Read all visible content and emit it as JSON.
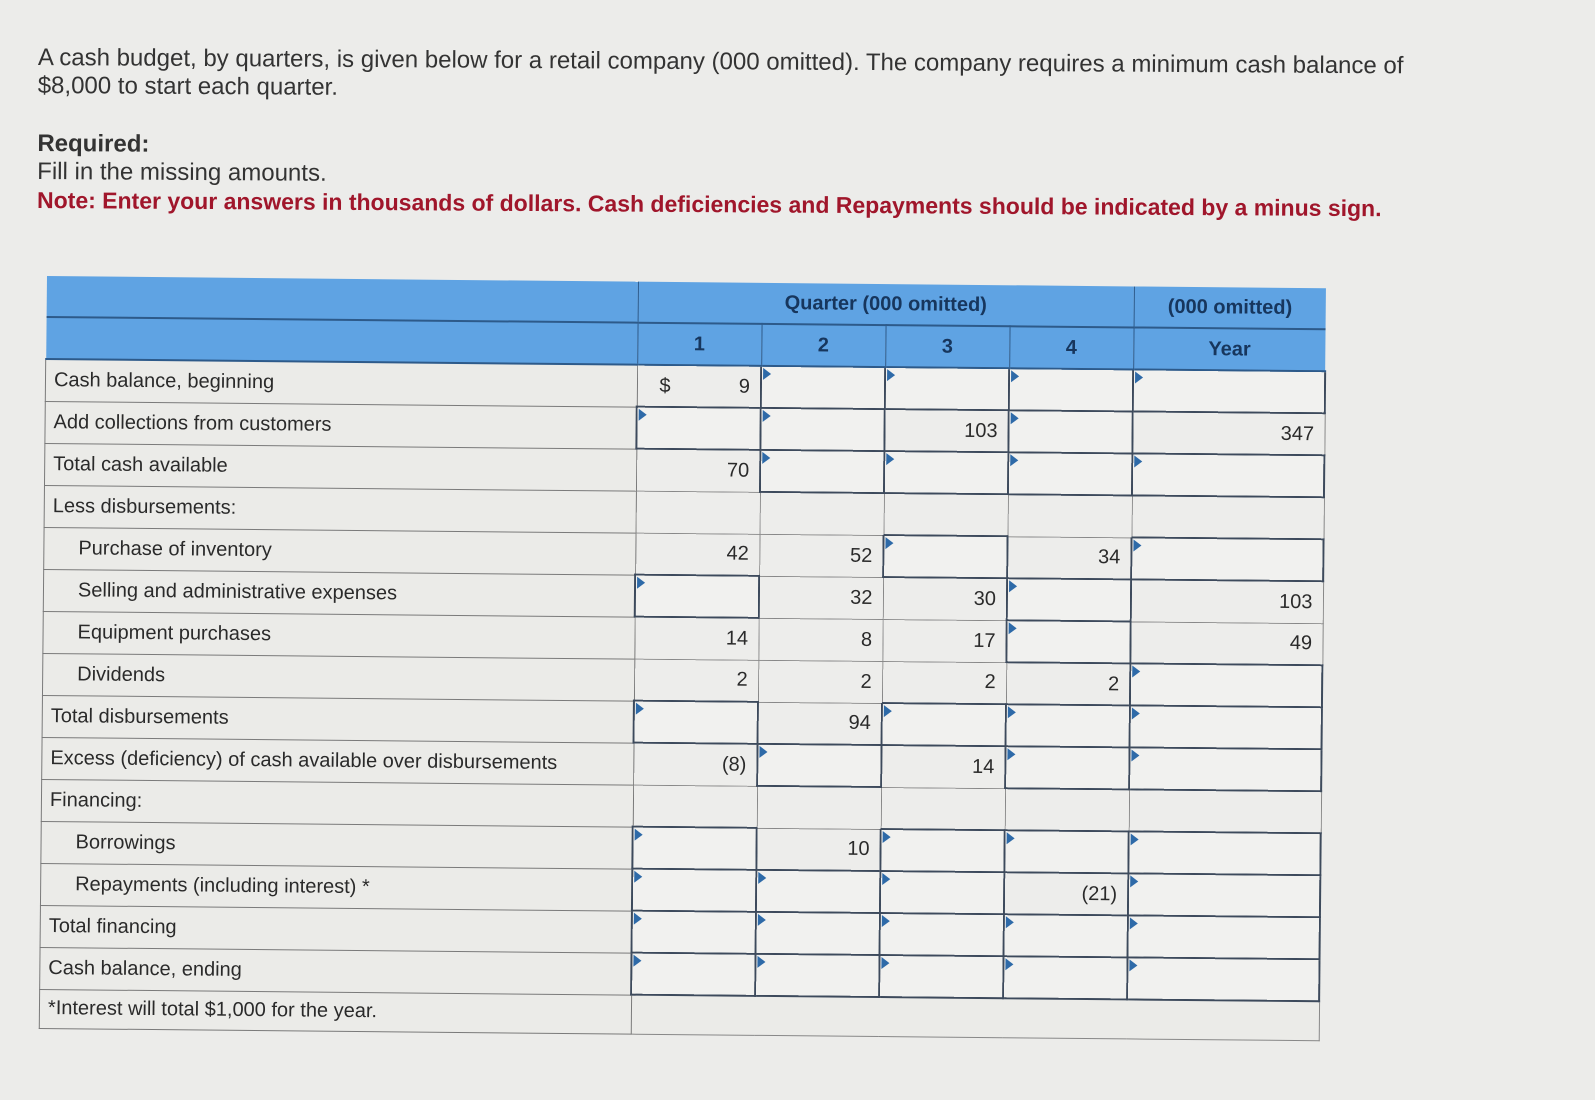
{
  "intro": {
    "line1": "A cash budget, by quarters, is given below for a retail company (000 omitted). The company requires a minimum cash balance of",
    "line2": "$8,000 to start each quarter.",
    "required_label": "Required:",
    "instruction": "Fill in the missing amounts.",
    "note": "Note: Enter your answers in thousands of dollars. Cash deficiencies and Repayments should be indicated by a minus sign."
  },
  "table": {
    "header": {
      "quarter_group": "Quarter (000 omitted)",
      "year_group": "(000 omitted)",
      "columns": [
        "1",
        "2",
        "3",
        "4",
        "Year"
      ]
    },
    "currency_symbol": "$",
    "rows": [
      {
        "label": "Cash balance, beginning",
        "indent": false,
        "cells": [
          "9",
          "",
          "",
          "",
          ""
        ],
        "inputs": [
          false,
          true,
          true,
          true,
          true
        ]
      },
      {
        "label": "Add collections from customers",
        "indent": false,
        "cells": [
          "",
          "",
          "103",
          "",
          "347"
        ],
        "inputs": [
          true,
          true,
          false,
          true,
          false
        ]
      },
      {
        "label": "Total cash available",
        "indent": false,
        "cells": [
          "70",
          "",
          "",
          "",
          ""
        ],
        "inputs": [
          false,
          true,
          true,
          true,
          true
        ]
      },
      {
        "label": "Less disbursements:",
        "indent": false,
        "cells": [
          "",
          "",
          "",
          "",
          ""
        ],
        "inputs": [
          false,
          false,
          false,
          false,
          false
        ]
      },
      {
        "label": "Purchase of inventory",
        "indent": true,
        "cells": [
          "42",
          "52",
          "",
          "34",
          ""
        ],
        "inputs": [
          false,
          false,
          true,
          false,
          true
        ]
      },
      {
        "label": "Selling and administrative expenses",
        "indent": true,
        "cells": [
          "",
          "32",
          "30",
          "",
          "103"
        ],
        "inputs": [
          true,
          false,
          false,
          true,
          false
        ]
      },
      {
        "label": "Equipment purchases",
        "indent": true,
        "cells": [
          "14",
          "8",
          "17",
          "",
          "49"
        ],
        "inputs": [
          false,
          false,
          false,
          true,
          false
        ]
      },
      {
        "label": "Dividends",
        "indent": true,
        "cells": [
          "2",
          "2",
          "2",
          "2",
          ""
        ],
        "inputs": [
          false,
          false,
          false,
          false,
          true
        ]
      },
      {
        "label": "Total disbursements",
        "indent": false,
        "cells": [
          "",
          "94",
          "",
          "",
          ""
        ],
        "inputs": [
          true,
          false,
          true,
          true,
          true
        ]
      },
      {
        "label": "Excess (deficiency) of cash available over disbursements",
        "indent": false,
        "cells": [
          "(8)",
          "",
          "14",
          "",
          ""
        ],
        "inputs": [
          false,
          true,
          false,
          true,
          true
        ]
      },
      {
        "label": "Financing:",
        "indent": false,
        "cells": [
          "",
          "",
          "",
          "",
          ""
        ],
        "inputs": [
          false,
          false,
          false,
          false,
          false
        ]
      },
      {
        "label": "Borrowings",
        "indent": true,
        "cells": [
          "",
          "10",
          "",
          "",
          ""
        ],
        "inputs": [
          true,
          false,
          true,
          true,
          true
        ]
      },
      {
        "label": "Repayments (including interest) *",
        "indent": true,
        "cells": [
          "",
          "",
          "",
          "(21)",
          ""
        ],
        "inputs": [
          true,
          true,
          true,
          false,
          true
        ]
      },
      {
        "label": "Total financing",
        "indent": false,
        "cells": [
          "",
          "",
          "",
          "",
          ""
        ],
        "inputs": [
          true,
          true,
          true,
          true,
          true
        ]
      },
      {
        "label": "Cash balance, ending",
        "indent": false,
        "cells": [
          "",
          "",
          "",
          "",
          ""
        ],
        "inputs": [
          true,
          true,
          true,
          true,
          true
        ]
      }
    ],
    "footnote": "*Interest will total $1,000 for the year."
  }
}
